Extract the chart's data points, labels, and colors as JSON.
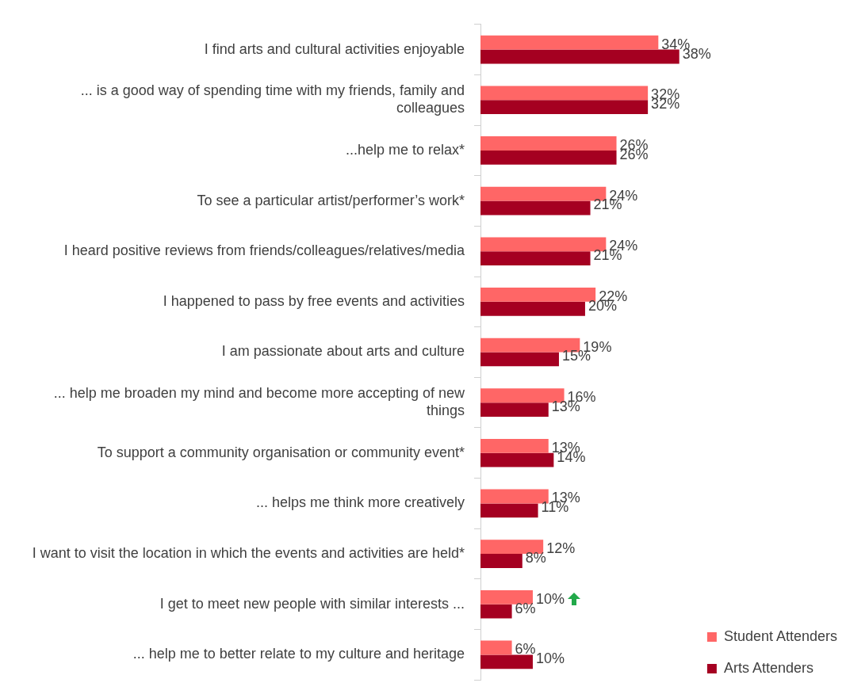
{
  "chart_data": {
    "type": "bar",
    "orientation": "horizontal",
    "categories": [
      "I find arts and cultural activities enjoyable",
      "... is a good way of spending time with my friends, family and colleagues",
      "...help me to relax*",
      "To see a particular artist/performer’s work*",
      "I heard positive reviews from friends/colleagues/relatives/media",
      "I happened to pass by free events and activities",
      "I am passionate about arts and culture",
      "... help me broaden my mind and become more accepting of new things",
      "To support a community organisation or community event*",
      "... helps me think more creatively",
      "I want to visit the location in which the events and activities are held*",
      "I get to meet new people with similar interests ...",
      "... help me to better relate to my culture and heritage"
    ],
    "series": [
      {
        "name": "Student Attenders",
        "color": "#ff6666",
        "values": [
          34,
          32,
          26,
          24,
          24,
          22,
          19,
          16,
          13,
          13,
          12,
          10,
          6
        ],
        "value_labels": [
          "34%",
          "32%",
          "26%",
          "24%",
          "24%",
          "22%",
          "19%",
          "16%",
          "13%",
          "13%",
          "12%",
          "10%",
          "6%"
        ]
      },
      {
        "name": "Arts Attenders",
        "color": "#a50021",
        "values": [
          38,
          32,
          26,
          21,
          21,
          20,
          15,
          13,
          14,
          11,
          8,
          6,
          10
        ],
        "value_labels": [
          "38%",
          "32%",
          "26%",
          "21%",
          "21%",
          "20%",
          "15%",
          "13%",
          "14%",
          "11%",
          "8%",
          "6%",
          "10%"
        ]
      }
    ],
    "legend": "bottom right",
    "grid": false
  }
}
